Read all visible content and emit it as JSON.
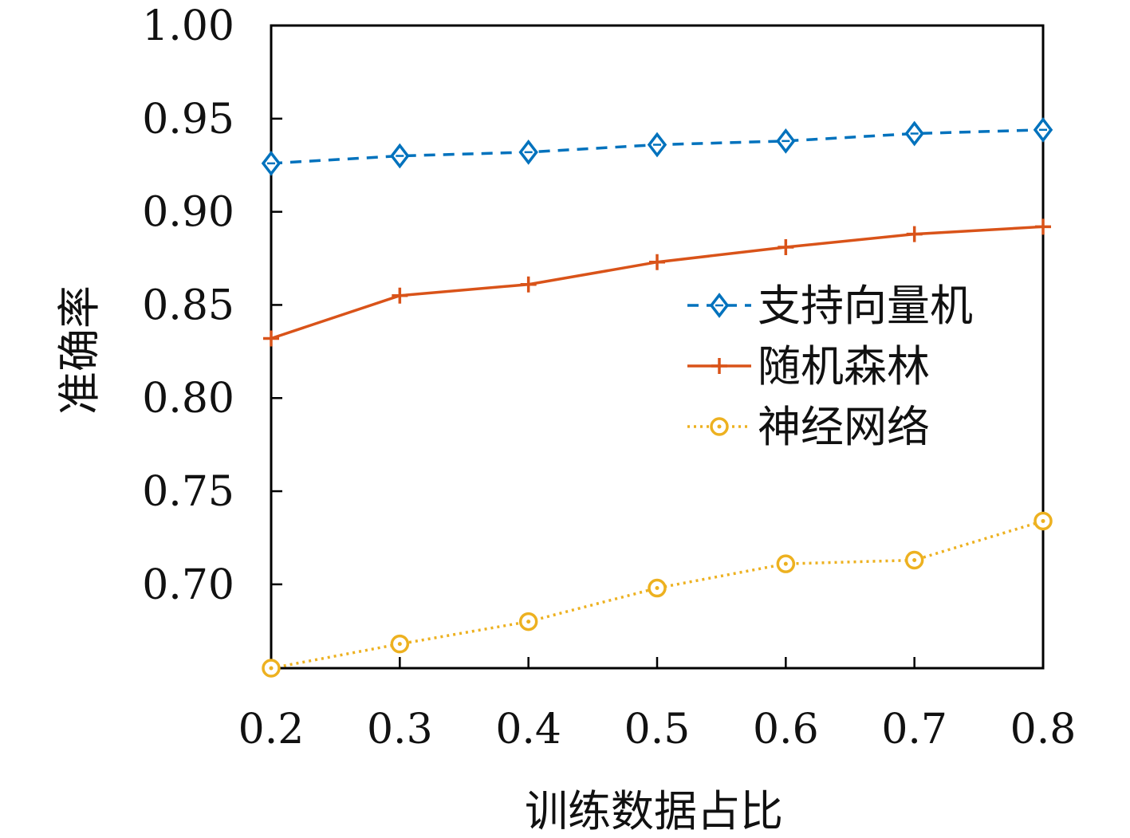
{
  "chart_data": {
    "type": "line",
    "xlabel": "训练数据占比",
    "ylabel": "准确率",
    "x": [
      0.2,
      0.3,
      0.4,
      0.5,
      0.6,
      0.7,
      0.8
    ],
    "x_ticks": [
      "0.2",
      "0.3",
      "0.4",
      "0.5",
      "0.6",
      "0.7",
      "0.8"
    ],
    "y_ticks": [
      "0.70",
      "0.75",
      "0.80",
      "0.85",
      "0.90",
      "0.95",
      "1.00"
    ],
    "xlim": [
      0.2,
      0.8
    ],
    "ylim": [
      0.655,
      1.0
    ],
    "grid": false,
    "legend_position": "right-middle",
    "series": [
      {
        "name": "支持向量机",
        "values": [
          0.926,
          0.93,
          0.932,
          0.936,
          0.938,
          0.942,
          0.944
        ],
        "color": "#0072BD",
        "line_style": "dashed",
        "marker": "diamond"
      },
      {
        "name": "随机森林",
        "values": [
          0.832,
          0.855,
          0.861,
          0.873,
          0.881,
          0.888,
          0.892
        ],
        "color": "#D95319",
        "line_style": "solid",
        "marker": "plus"
      },
      {
        "name": "神经网络",
        "values": [
          0.655,
          0.668,
          0.68,
          0.698,
          0.711,
          0.713,
          0.734
        ],
        "color": "#EDB120",
        "line_style": "dotted",
        "marker": "circle"
      }
    ]
  }
}
